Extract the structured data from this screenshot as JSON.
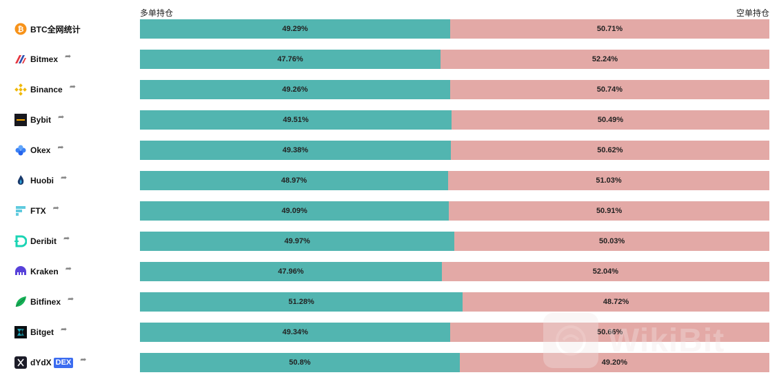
{
  "headers": {
    "long": "多单持仓",
    "short": "空单持仓"
  },
  "share_glyph": "➦",
  "colors": {
    "long": "#52b5b0",
    "short": "#e3a9a6"
  },
  "exchanges": [
    {
      "name": "BTC全网统计",
      "icon": "bitcoin-icon",
      "long_pct": 49.29,
      "long_label": "49.29%",
      "short_label": "50.71%",
      "share": false
    },
    {
      "name": "Bitmex",
      "icon": "bitmex-icon",
      "long_pct": 47.76,
      "long_label": "47.76%",
      "short_label": "52.24%",
      "share": true
    },
    {
      "name": "Binance",
      "icon": "binance-icon",
      "long_pct": 49.26,
      "long_label": "49.26%",
      "short_label": "50.74%",
      "share": true
    },
    {
      "name": "Bybit",
      "icon": "bybit-icon",
      "long_pct": 49.51,
      "long_label": "49.51%",
      "short_label": "50.49%",
      "share": true
    },
    {
      "name": "Okex",
      "icon": "okex-icon",
      "long_pct": 49.38,
      "long_label": "49.38%",
      "short_label": "50.62%",
      "share": true
    },
    {
      "name": "Huobi",
      "icon": "huobi-icon",
      "long_pct": 48.97,
      "long_label": "48.97%",
      "short_label": "51.03%",
      "share": true
    },
    {
      "name": "FTX",
      "icon": "ftx-icon",
      "long_pct": 49.09,
      "long_label": "49.09%",
      "short_label": "50.91%",
      "share": true
    },
    {
      "name": "Deribit",
      "icon": "deribit-icon",
      "long_pct": 49.97,
      "long_label": "49.97%",
      "short_label": "50.03%",
      "share": true
    },
    {
      "name": "Kraken",
      "icon": "kraken-icon",
      "long_pct": 47.96,
      "long_label": "47.96%",
      "short_label": "52.04%",
      "share": true
    },
    {
      "name": "Bitfinex",
      "icon": "bitfinex-icon",
      "long_pct": 51.28,
      "long_label": "51.28%",
      "short_label": "48.72%",
      "share": true
    },
    {
      "name": "Bitget",
      "icon": "bitget-icon",
      "long_pct": 49.34,
      "long_label": "49.34%",
      "short_label": "50.66%",
      "share": true
    },
    {
      "name": "dYdX",
      "icon": "dydx-icon",
      "badge": "DEX",
      "long_pct": 50.8,
      "long_label": "50.8%",
      "short_label": "49.20%",
      "share": true
    }
  ],
  "watermark": {
    "text": "WikiBit"
  }
}
